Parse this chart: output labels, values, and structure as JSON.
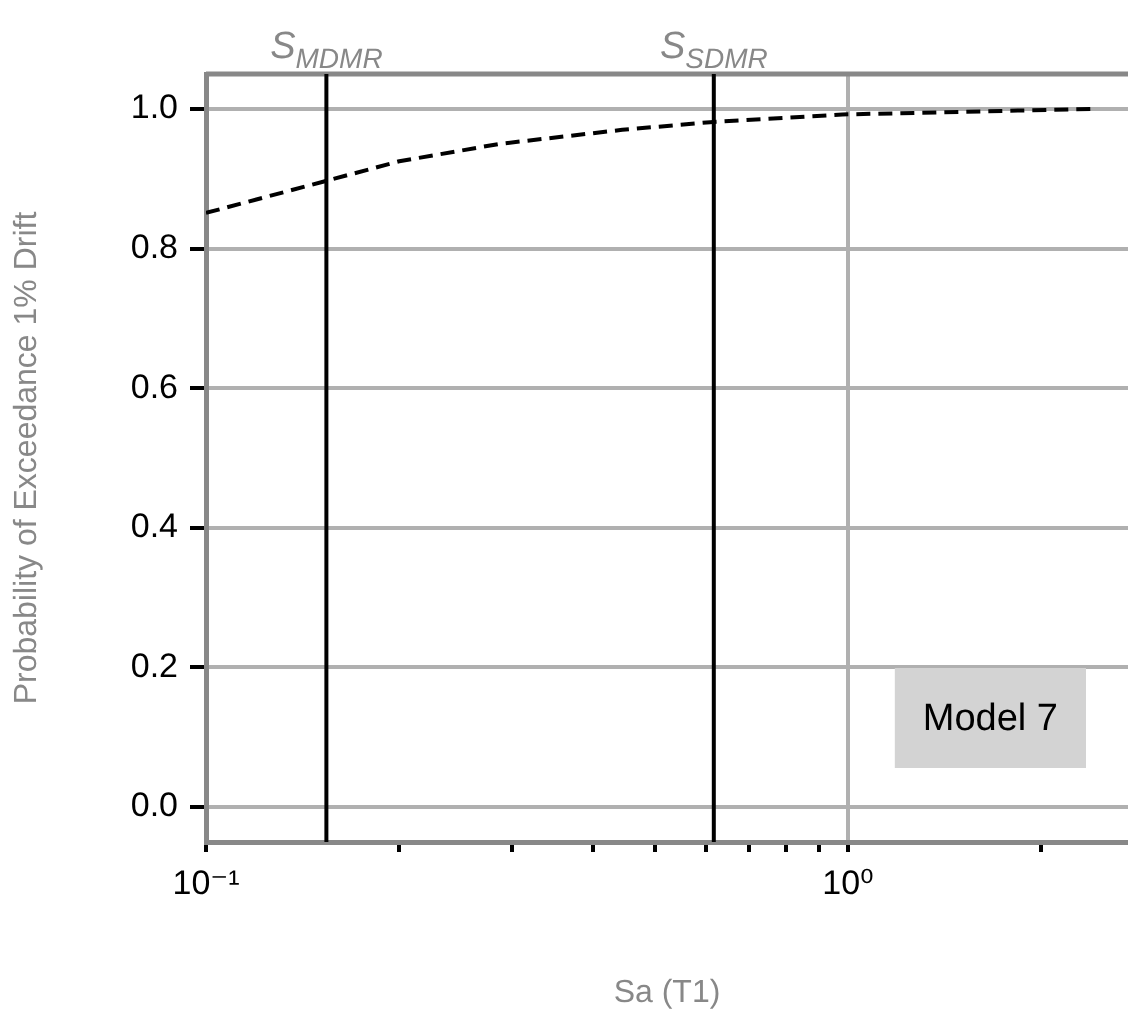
{
  "chart_data": {
    "type": "line",
    "xlabel": "Sa (T1)",
    "ylabel": "Probability of Exceedance 1% Drift",
    "log": "x",
    "x": [
      0.1,
      0.154,
      0.2,
      0.287,
      0.445,
      0.61,
      0.98,
      2.4
    ],
    "series": [
      {
        "color": "#000000",
        "values": [
          0.851,
          0.897,
          0.925,
          0.95,
          0.97,
          0.981,
          0.992,
          1.0
        ]
      }
    ],
    "xlim": [
      0.1,
      2.73
    ],
    "ylim": [
      -0.05,
      1.05
    ],
    "xticks": [
      {
        "value": 0.1,
        "label": "10⁻¹"
      },
      {
        "value": 0.2,
        "label": null
      },
      {
        "value": 0.3,
        "label": null
      },
      {
        "value": 0.4,
        "label": null
      },
      {
        "value": 0.5,
        "label": null
      },
      {
        "value": 0.6,
        "label": null
      },
      {
        "value": 0.7,
        "label": null
      },
      {
        "value": 0.8,
        "label": null
      },
      {
        "value": 0.9,
        "label": null
      },
      {
        "value": 1,
        "label": "10⁰"
      },
      {
        "value": 2,
        "label": null
      }
    ],
    "yticks": [
      {
        "value": 0,
        "label": "0.0"
      },
      {
        "value": 0.2,
        "label": "0.2"
      },
      {
        "value": 0.4,
        "label": "0.4"
      },
      {
        "value": 0.6,
        "label": "0.6"
      },
      {
        "value": 0.8,
        "label": "0.8"
      },
      {
        "value": 1,
        "label": "1.0"
      }
    ],
    "ref_lines": [
      {
        "axis": "x",
        "value": 0.154,
        "label": "S$_{MDMR}$",
        "color": "#000000"
      },
      {
        "axis": "x",
        "value": 0.618,
        "label": "S$_{SDMR}$",
        "color": "#000000"
      }
    ],
    "annotations": [
      "Model 7"
    ],
    "grid": true,
    "legend": false,
    "marker": "none",
    "line_style": "dashed"
  }
}
